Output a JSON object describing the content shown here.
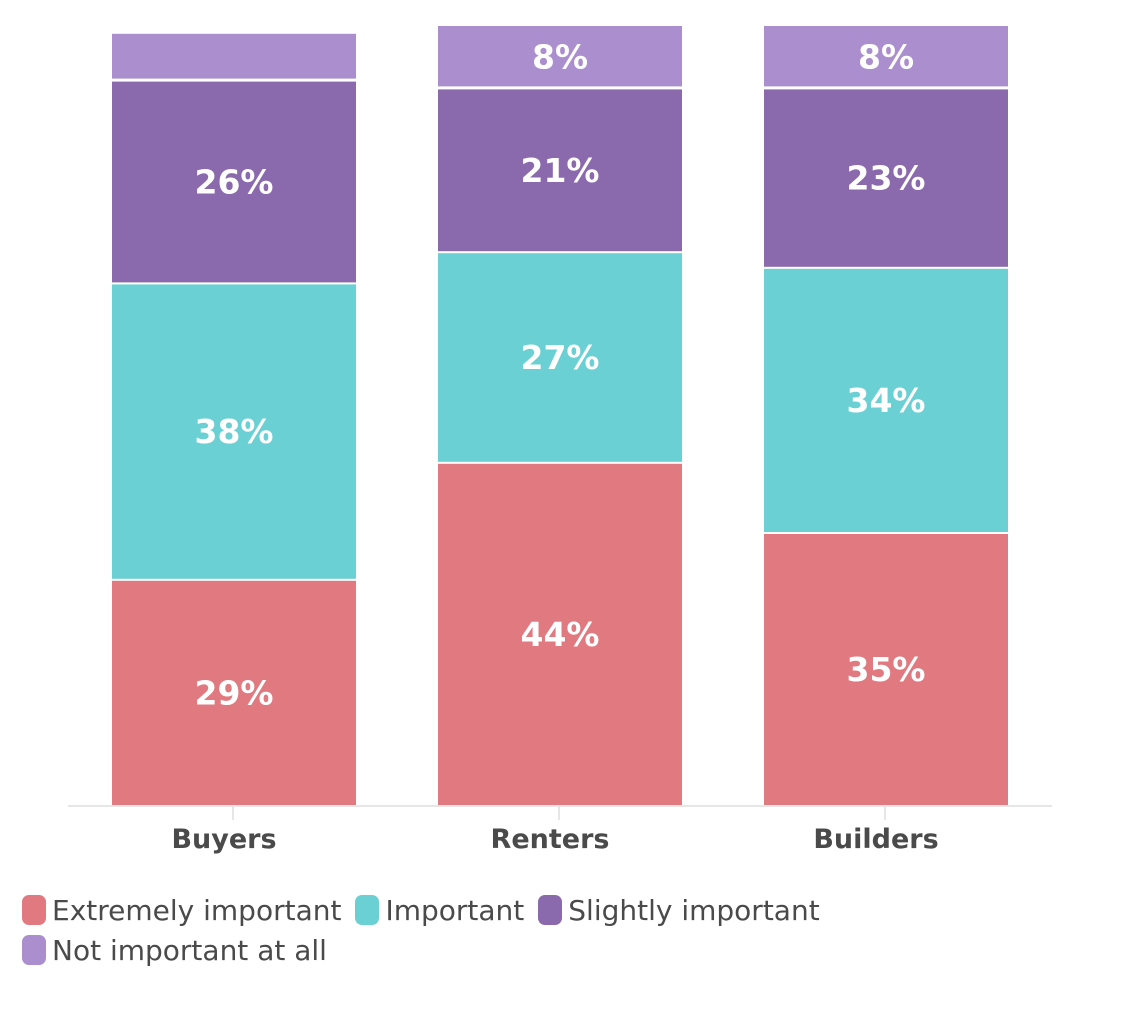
{
  "chart_data": {
    "type": "bar",
    "stacked": true,
    "categories": [
      "Buyers",
      "Renters",
      "Builders"
    ],
    "series": [
      {
        "name": "Extremely important",
        "color": "#e07a80",
        "values": [
          29,
          44,
          35
        ],
        "labels": [
          "29%",
          "44%",
          "35%"
        ]
      },
      {
        "name": "Important",
        "color": "#6bd0d3",
        "values": [
          38,
          27,
          34
        ],
        "labels": [
          "38%",
          "27%",
          "34%"
        ]
      },
      {
        "name": "Slightly important",
        "color": "#8a69ad",
        "values": [
          26,
          21,
          23
        ],
        "labels": [
          "26%",
          "21%",
          "23%"
        ]
      },
      {
        "name": "Not important at all",
        "color": "#ab8ecd",
        "values": [
          6,
          8,
          8
        ],
        "labels": [
          "",
          "8%",
          "8%"
        ]
      }
    ],
    "ylim": [
      0,
      100
    ],
    "grid": false,
    "legend_position": "bottom",
    "title": "",
    "xlabel": "",
    "ylabel": ""
  }
}
